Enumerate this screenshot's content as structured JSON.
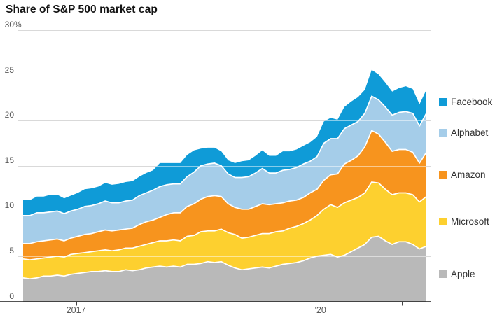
{
  "title": "Share of S&P 500 market cap",
  "colors": {
    "grid": "#d9d9d9",
    "grid_over_area": "rgba(255,255,255,0.5)",
    "axis_line": "#1a1a1a",
    "tick_mark": "#444444",
    "axis_text": "#595959",
    "legend_text": "#333333",
    "title_text": "#141414",
    "separator": "#ffffff",
    "background": "#ffffff"
  },
  "chart_data": {
    "type": "area",
    "stacked": true,
    "title": "Share of S&P 500 market cap",
    "xlabel": "",
    "ylabel": "Share of S&P 500 market cap (%)",
    "x_domain": [
      2016.35,
      2021.3
    ],
    "ylim": [
      0,
      30
    ],
    "grid": true,
    "legend_position": "right",
    "y_ticks": [
      {
        "value": 30,
        "label": "30",
        "suffix": "%"
      },
      {
        "value": 25,
        "label": "25",
        "suffix": ""
      },
      {
        "value": 20,
        "label": "20",
        "suffix": ""
      },
      {
        "value": 15,
        "label": "15",
        "suffix": ""
      },
      {
        "value": 10,
        "label": "10",
        "suffix": ""
      },
      {
        "value": 5,
        "label": "5",
        "suffix": ""
      },
      {
        "value": 0,
        "label": "0",
        "suffix": ""
      }
    ],
    "x_ticks": [
      {
        "year": 2017,
        "label": "2017"
      },
      {
        "year": 2018,
        "label": ""
      },
      {
        "year": 2019,
        "label": ""
      },
      {
        "year": 2020,
        "label": "'20"
      },
      {
        "year": 2021,
        "label": ""
      }
    ],
    "x_unit": "monthly samples, May 2016 - Apr 2021",
    "series": [
      {
        "name": "Apple",
        "color": "#b9b9b9",
        "values": [
          2.6,
          2.5,
          2.6,
          2.8,
          2.8,
          2.9,
          2.8,
          3.0,
          3.1,
          3.2,
          3.3,
          3.3,
          3.4,
          3.3,
          3.3,
          3.5,
          3.4,
          3.5,
          3.7,
          3.8,
          3.9,
          3.8,
          3.9,
          3.8,
          4.1,
          4.1,
          4.2,
          4.4,
          4.3,
          4.4,
          4.0,
          3.7,
          3.5,
          3.6,
          3.7,
          3.8,
          3.7,
          3.9,
          4.1,
          4.2,
          4.3,
          4.5,
          4.8,
          5.0,
          5.1,
          5.2,
          4.9,
          5.1,
          5.5,
          5.9,
          6.3,
          7.1,
          7.2,
          6.7,
          6.3,
          6.6,
          6.6,
          6.3,
          5.8,
          6.1
        ]
      },
      {
        "name": "Microsoft",
        "color": "#fdd02f",
        "values": [
          2.1,
          2.1,
          2.1,
          2.0,
          2.1,
          2.1,
          2.1,
          2.2,
          2.2,
          2.2,
          2.2,
          2.3,
          2.3,
          2.3,
          2.4,
          2.4,
          2.5,
          2.6,
          2.6,
          2.7,
          2.8,
          2.9,
          2.9,
          2.9,
          3.1,
          3.2,
          3.5,
          3.4,
          3.5,
          3.6,
          3.6,
          3.7,
          3.5,
          3.5,
          3.6,
          3.7,
          3.8,
          3.8,
          3.7,
          3.9,
          4.0,
          4.1,
          4.2,
          4.5,
          5.1,
          5.5,
          5.5,
          5.8,
          5.7,
          5.6,
          5.7,
          6.1,
          5.9,
          5.7,
          5.5,
          5.4,
          5.4,
          5.5,
          5.2,
          5.5
        ]
      },
      {
        "name": "Amazon",
        "color": "#f7941e",
        "values": [
          1.7,
          1.8,
          1.9,
          1.9,
          1.9,
          1.9,
          1.8,
          1.8,
          1.9,
          2.0,
          2.0,
          2.1,
          2.2,
          2.2,
          2.2,
          2.1,
          2.2,
          2.4,
          2.5,
          2.5,
          2.6,
          2.9,
          3.0,
          3.1,
          3.3,
          3.5,
          3.6,
          3.8,
          3.9,
          3.6,
          3.2,
          3.0,
          3.2,
          3.1,
          3.2,
          3.3,
          3.2,
          3.1,
          3.1,
          3.0,
          2.9,
          2.9,
          3.0,
          2.9,
          3.2,
          3.3,
          3.7,
          4.3,
          4.4,
          4.6,
          5.1,
          5.7,
          5.4,
          5.2,
          4.8,
          4.8,
          4.8,
          4.7,
          4.3,
          4.9
        ]
      },
      {
        "name": "Alphabet",
        "color": "#a5cde9",
        "values": [
          3.1,
          3.1,
          3.2,
          3.1,
          3.1,
          3.1,
          3.0,
          3.0,
          3.0,
          3.1,
          3.1,
          3.1,
          3.2,
          3.1,
          3.0,
          3.1,
          3.1,
          3.2,
          3.2,
          3.3,
          3.4,
          3.3,
          3.2,
          3.2,
          3.3,
          3.5,
          3.7,
          3.6,
          3.6,
          3.4,
          3.3,
          3.3,
          3.5,
          3.6,
          3.7,
          3.9,
          3.5,
          3.4,
          3.6,
          3.5,
          3.6,
          3.7,
          3.5,
          3.6,
          4.1,
          4.0,
          3.9,
          3.9,
          3.9,
          3.8,
          3.7,
          3.8,
          3.8,
          3.9,
          4.0,
          4.1,
          4.2,
          4.3,
          4.1,
          4.3
        ]
      },
      {
        "name": "Facebook",
        "color": "#0f9bd7",
        "values": [
          1.7,
          1.7,
          1.8,
          1.8,
          1.9,
          1.8,
          1.7,
          1.7,
          1.8,
          1.9,
          1.9,
          1.9,
          2.0,
          2.0,
          2.1,
          2.1,
          2.1,
          2.1,
          2.2,
          2.2,
          2.6,
          2.4,
          2.3,
          2.3,
          2.4,
          2.4,
          1.9,
          1.8,
          1.7,
          1.6,
          1.5,
          1.6,
          1.8,
          1.8,
          1.9,
          2.0,
          1.9,
          1.9,
          2.1,
          2.0,
          2.0,
          2.0,
          2.1,
          2.2,
          2.4,
          2.3,
          2.1,
          2.4,
          2.6,
          2.7,
          2.6,
          2.9,
          2.8,
          2.7,
          2.6,
          2.7,
          2.8,
          2.7,
          2.4,
          2.6
        ]
      }
    ]
  },
  "legend": {
    "items": [
      {
        "label": "Facebook",
        "series": "Facebook"
      },
      {
        "label": "Alphabet",
        "series": "Alphabet"
      },
      {
        "label": "Amazon",
        "series": "Amazon"
      },
      {
        "label": "Microsoft",
        "series": "Microsoft"
      },
      {
        "label": "Apple",
        "series": "Apple"
      }
    ]
  }
}
